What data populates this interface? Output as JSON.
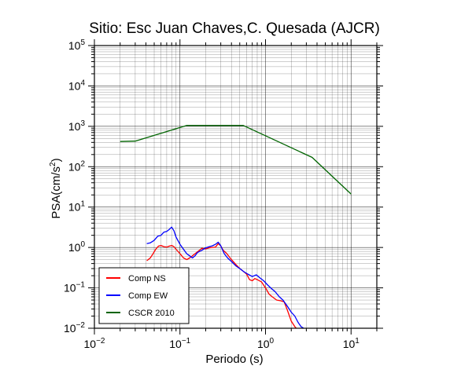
{
  "chart_data": {
    "type": "line",
    "title": "Sitio: Esc Juan Chaves,C. Quesada (AJCR)",
    "xlabel": "Periodo (s)",
    "ylabel_base": "PSA(cm/s",
    "ylabel_sup": "2",
    "ylabel_end": ")",
    "x_scale": "log",
    "y_scale": "log",
    "xlim": [
      0.01,
      20
    ],
    "ylim": [
      0.01,
      100000
    ],
    "grid": true,
    "legend_placement": "bottom-left",
    "x_ticks": [
      {
        "value": 0.01,
        "base": "10",
        "exp": "−2"
      },
      {
        "value": 0.1,
        "base": "10",
        "exp": "−1"
      },
      {
        "value": 1,
        "base": "10",
        "exp": "0"
      },
      {
        "value": 10,
        "base": "10",
        "exp": "1"
      }
    ],
    "y_ticks": [
      {
        "value": 0.01,
        "base": "10",
        "exp": "−2"
      },
      {
        "value": 0.1,
        "base": "10",
        "exp": "−1"
      },
      {
        "value": 1,
        "base": "10",
        "exp": "0"
      },
      {
        "value": 10,
        "base": "10",
        "exp": "1"
      },
      {
        "value": 100,
        "base": "10",
        "exp": "2"
      },
      {
        "value": 1000,
        "base": "10",
        "exp": "3"
      },
      {
        "value": 10000,
        "base": "10",
        "exp": "4"
      },
      {
        "value": 100000,
        "base": "10",
        "exp": "5"
      }
    ],
    "series": [
      {
        "name": "Comp NS",
        "color": "#ff0000",
        "points": [
          [
            0.041,
            0.47
          ],
          [
            0.045,
            0.55
          ],
          [
            0.048,
            0.68
          ],
          [
            0.052,
            0.9
          ],
          [
            0.056,
            1.08
          ],
          [
            0.06,
            1.12
          ],
          [
            0.065,
            1.05
          ],
          [
            0.07,
            1.02
          ],
          [
            0.075,
            1.08
          ],
          [
            0.08,
            1.12
          ],
          [
            0.085,
            1.05
          ],
          [
            0.09,
            0.9
          ],
          [
            0.1,
            0.7
          ],
          [
            0.11,
            0.55
          ],
          [
            0.12,
            0.5
          ],
          [
            0.13,
            0.55
          ],
          [
            0.14,
            0.62
          ],
          [
            0.15,
            0.7
          ],
          [
            0.165,
            0.82
          ],
          [
            0.18,
            0.95
          ],
          [
            0.2,
            0.92
          ],
          [
            0.22,
            0.98
          ],
          [
            0.24,
            1.0
          ],
          [
            0.26,
            1.02
          ],
          [
            0.28,
            1.25
          ],
          [
            0.3,
            1.1
          ],
          [
            0.32,
            0.85
          ],
          [
            0.35,
            0.72
          ],
          [
            0.4,
            0.5
          ],
          [
            0.45,
            0.38
          ],
          [
            0.5,
            0.3
          ],
          [
            0.56,
            0.25
          ],
          [
            0.6,
            0.22
          ],
          [
            0.65,
            0.16
          ],
          [
            0.7,
            0.15
          ],
          [
            0.75,
            0.17
          ],
          [
            0.8,
            0.16
          ],
          [
            0.9,
            0.14
          ],
          [
            1.0,
            0.1
          ],
          [
            1.1,
            0.07
          ],
          [
            1.2,
            0.06
          ],
          [
            1.35,
            0.05
          ],
          [
            1.5,
            0.048
          ],
          [
            1.65,
            0.045
          ],
          [
            1.8,
            0.028
          ],
          [
            2.0,
            0.015
          ],
          [
            2.2,
            0.011
          ],
          [
            2.4,
            0.009
          ],
          [
            2.6,
            0.008
          ]
        ]
      },
      {
        "name": "Comp EW",
        "color": "#0000ff",
        "points": [
          [
            0.041,
            1.25
          ],
          [
            0.045,
            1.3
          ],
          [
            0.05,
            1.5
          ],
          [
            0.055,
            1.9
          ],
          [
            0.06,
            2.0
          ],
          [
            0.065,
            2.4
          ],
          [
            0.07,
            2.5
          ],
          [
            0.075,
            2.8
          ],
          [
            0.08,
            3.2
          ],
          [
            0.085,
            2.6
          ],
          [
            0.09,
            1.8
          ],
          [
            0.1,
            1.2
          ],
          [
            0.11,
            0.9
          ],
          [
            0.12,
            0.7
          ],
          [
            0.13,
            0.62
          ],
          [
            0.14,
            0.55
          ],
          [
            0.15,
            0.62
          ],
          [
            0.16,
            0.75
          ],
          [
            0.18,
            0.85
          ],
          [
            0.2,
            0.98
          ],
          [
            0.22,
            1.05
          ],
          [
            0.24,
            1.1
          ],
          [
            0.26,
            1.2
          ],
          [
            0.28,
            1.35
          ],
          [
            0.3,
            1.1
          ],
          [
            0.33,
            0.7
          ],
          [
            0.36,
            0.55
          ],
          [
            0.4,
            0.45
          ],
          [
            0.45,
            0.35
          ],
          [
            0.5,
            0.3
          ],
          [
            0.56,
            0.25
          ],
          [
            0.62,
            0.22
          ],
          [
            0.7,
            0.19
          ],
          [
            0.78,
            0.21
          ],
          [
            0.85,
            0.18
          ],
          [
            0.95,
            0.15
          ],
          [
            1.05,
            0.12
          ],
          [
            1.15,
            0.1
          ],
          [
            1.3,
            0.08
          ],
          [
            1.45,
            0.06
          ],
          [
            1.6,
            0.05
          ],
          [
            1.8,
            0.035
          ],
          [
            2.0,
            0.025
          ],
          [
            2.2,
            0.02
          ],
          [
            2.4,
            0.014
          ],
          [
            2.6,
            0.011
          ],
          [
            2.8,
            0.01
          ]
        ]
      },
      {
        "name": "CSCR 2010",
        "color": "#006400",
        "points": [
          [
            0.02,
            420
          ],
          [
            0.03,
            430
          ],
          [
            0.12,
            1050
          ],
          [
            0.55,
            1050
          ],
          [
            3.5,
            170
          ],
          [
            10,
            21
          ]
        ]
      }
    ]
  }
}
